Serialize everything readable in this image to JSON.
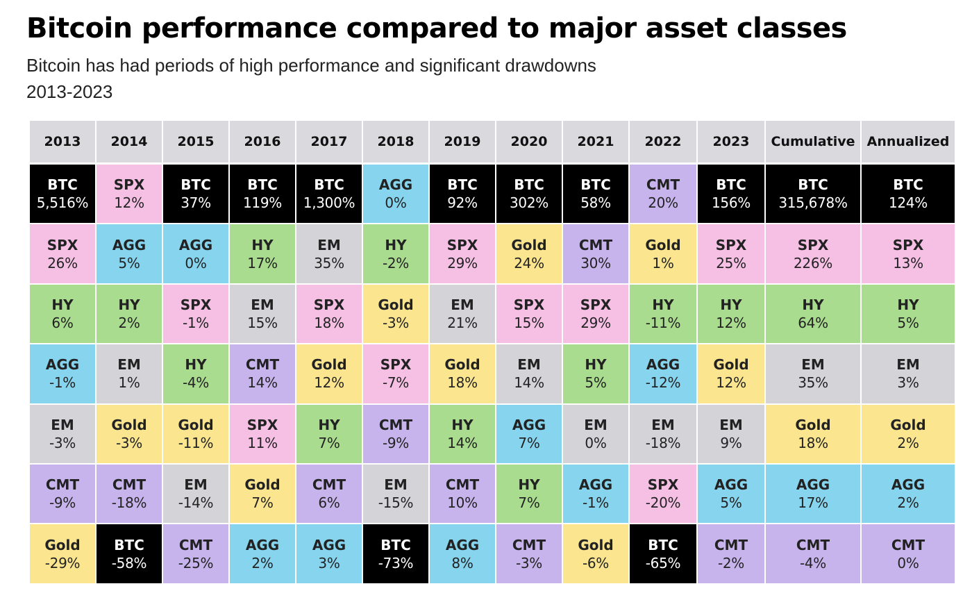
{
  "title": "Bitcoin performance compared to major asset classes",
  "subtitle": "Bitcoin has had periods of high performance and significant drawdowns",
  "period": "2013-2023",
  "colors": {
    "BTC": "#000000",
    "SPX": "#f6c0e5",
    "AGG": "#86d4ee",
    "HY": "#a9dc8e",
    "EM": "#d3d3d8",
    "CMT": "#c7b4ec",
    "Gold": "#fbe58f",
    "header": "#d9d9de"
  },
  "chart_data": {
    "type": "table",
    "columns": [
      "2013",
      "2014",
      "2015",
      "2016",
      "2017",
      "2018",
      "2019",
      "2020",
      "2021",
      "2022",
      "2023",
      "Cumulative",
      "Annualized"
    ],
    "rows": [
      [
        [
          "BTC",
          "5,516%"
        ],
        [
          "SPX",
          "12%"
        ],
        [
          "BTC",
          "37%"
        ],
        [
          "BTC",
          "119%"
        ],
        [
          "BTC",
          "1,300%"
        ],
        [
          "AGG",
          "0%"
        ],
        [
          "BTC",
          "92%"
        ],
        [
          "BTC",
          "302%"
        ],
        [
          "BTC",
          "58%"
        ],
        [
          "CMT",
          "20%"
        ],
        [
          "BTC",
          "156%"
        ],
        [
          "BTC",
          "315,678%"
        ],
        [
          "BTC",
          "124%"
        ]
      ],
      [
        [
          "SPX",
          "26%"
        ],
        [
          "AGG",
          "5%"
        ],
        [
          "AGG",
          "0%"
        ],
        [
          "HY",
          "17%"
        ],
        [
          "EM",
          "35%"
        ],
        [
          "HY",
          "-2%"
        ],
        [
          "SPX",
          "29%"
        ],
        [
          "Gold",
          "24%"
        ],
        [
          "CMT",
          "30%"
        ],
        [
          "Gold",
          "1%"
        ],
        [
          "SPX",
          "25%"
        ],
        [
          "SPX",
          "226%"
        ],
        [
          "SPX",
          "13%"
        ]
      ],
      [
        [
          "HY",
          "6%"
        ],
        [
          "HY",
          "2%"
        ],
        [
          "SPX",
          "-1%"
        ],
        [
          "EM",
          "15%"
        ],
        [
          "SPX",
          "18%"
        ],
        [
          "Gold",
          "-3%"
        ],
        [
          "EM",
          "21%"
        ],
        [
          "SPX",
          "15%"
        ],
        [
          "SPX",
          "29%"
        ],
        [
          "HY",
          "-11%"
        ],
        [
          "HY",
          "12%"
        ],
        [
          "HY",
          "64%"
        ],
        [
          "HY",
          "5%"
        ]
      ],
      [
        [
          "AGG",
          "-1%"
        ],
        [
          "EM",
          "1%"
        ],
        [
          "HY",
          "-4%"
        ],
        [
          "CMT",
          "14%"
        ],
        [
          "Gold",
          "12%"
        ],
        [
          "SPX",
          "-7%"
        ],
        [
          "Gold",
          "18%"
        ],
        [
          "EM",
          "14%"
        ],
        [
          "HY",
          "5%"
        ],
        [
          "AGG",
          "-12%"
        ],
        [
          "Gold",
          "12%"
        ],
        [
          "EM",
          "35%"
        ],
        [
          "EM",
          "3%"
        ]
      ],
      [
        [
          "EM",
          "-3%"
        ],
        [
          "Gold",
          "-3%"
        ],
        [
          "Gold",
          "-11%"
        ],
        [
          "SPX",
          "11%"
        ],
        [
          "HY",
          "7%"
        ],
        [
          "CMT",
          "-9%"
        ],
        [
          "HY",
          "14%"
        ],
        [
          "AGG",
          "7%"
        ],
        [
          "EM",
          "0%"
        ],
        [
          "EM",
          "-18%"
        ],
        [
          "EM",
          "9%"
        ],
        [
          "Gold",
          "18%"
        ],
        [
          "Gold",
          "2%"
        ]
      ],
      [
        [
          "CMT",
          "-9%"
        ],
        [
          "CMT",
          "-18%"
        ],
        [
          "EM",
          "-14%"
        ],
        [
          "Gold",
          "7%"
        ],
        [
          "CMT",
          "6%"
        ],
        [
          "EM",
          "-15%"
        ],
        [
          "CMT",
          "10%"
        ],
        [
          "HY",
          "7%"
        ],
        [
          "AGG",
          "-1%"
        ],
        [
          "SPX",
          "-20%"
        ],
        [
          "AGG",
          "5%"
        ],
        [
          "AGG",
          "17%"
        ],
        [
          "AGG",
          "2%"
        ]
      ],
      [
        [
          "Gold",
          "-29%"
        ],
        [
          "BTC",
          "-58%"
        ],
        [
          "CMT",
          "-25%"
        ],
        [
          "AGG",
          "2%"
        ],
        [
          "AGG",
          "3%"
        ],
        [
          "BTC",
          "-73%"
        ],
        [
          "AGG",
          "8%"
        ],
        [
          "CMT",
          "-3%"
        ],
        [
          "Gold",
          "-6%"
        ],
        [
          "BTC",
          "-65%"
        ],
        [
          "CMT",
          "-2%"
        ],
        [
          "CMT",
          "-4%"
        ],
        [
          "CMT",
          "0%"
        ]
      ]
    ]
  }
}
